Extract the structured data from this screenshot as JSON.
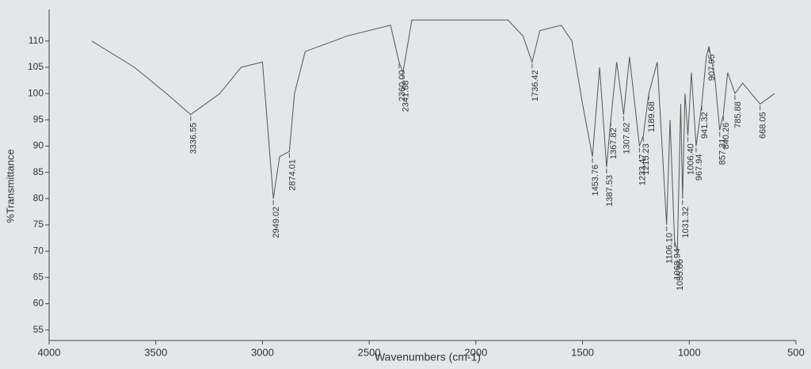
{
  "chart_data": {
    "type": "line",
    "x_label": "Wavenumbers (cm-1)",
    "y_label": "%Transmittance",
    "xlim": [
      4000,
      500
    ],
    "xticks": [
      4000,
      3500,
      3000,
      2500,
      2000,
      1500,
      1000,
      500
    ],
    "ylim": [
      53,
      116
    ],
    "yticks": [
      55,
      60,
      65,
      70,
      75,
      80,
      85,
      90,
      95,
      100,
      105,
      110
    ],
    "series": [
      {
        "color": "#555555",
        "x": [
          3800,
          3600,
          3450,
          3336.55,
          3200,
          3100,
          3000,
          2949.02,
          2920,
          2874.01,
          2850,
          2800,
          2600,
          2400,
          2360,
          2341.68,
          2300,
          2200,
          2000,
          1850,
          1780,
          1736.42,
          1700,
          1600,
          1550,
          1500,
          1453.76,
          1420,
          1387.53,
          1367.82,
          1340,
          1307.62,
          1280,
          1233.47,
          1215.23,
          1189.68,
          1150,
          1106.1,
          1090,
          1068.94,
          1055.86,
          1040,
          1031.32,
          1020,
          1006.4,
          990,
          967.94,
          941.32,
          920,
          907.95,
          880,
          857.31,
          840.26,
          820,
          785.88,
          750,
          668.05,
          600
        ],
        "values": [
          110,
          105,
          100,
          96,
          100,
          105,
          106,
          80,
          88,
          89,
          100,
          108,
          111,
          113,
          106,
          104,
          114,
          114,
          114,
          114,
          111,
          106,
          112,
          113,
          110,
          98,
          88,
          105,
          86,
          95,
          106,
          96,
          107,
          90,
          92,
          100,
          106,
          75,
          95,
          72,
          70,
          98,
          80,
          100,
          92,
          104,
          90,
          98,
          107,
          109,
          103,
          93,
          96,
          104,
          100,
          102,
          98,
          100
        ]
      }
    ],
    "annotations": [
      {
        "x": 3336.55,
        "y": 96,
        "label": "3336.55"
      },
      {
        "x": 2949.02,
        "y": 80,
        "label": "2949.02"
      },
      {
        "x": 2874.01,
        "y": 89,
        "label": "2874.01"
      },
      {
        "x": 2360.0,
        "y": 106,
        "label": "2360.00"
      },
      {
        "x": 2341.68,
        "y": 104,
        "label": "2341.68"
      },
      {
        "x": 1736.42,
        "y": 106,
        "label": "1736.42"
      },
      {
        "x": 1453.76,
        "y": 88,
        "label": "1453.76"
      },
      {
        "x": 1387.53,
        "y": 86,
        "label": "1387.53"
      },
      {
        "x": 1367.82,
        "y": 95,
        "label": "1367.82"
      },
      {
        "x": 1307.62,
        "y": 96,
        "label": "1307.62"
      },
      {
        "x": 1233.47,
        "y": 90,
        "label": "1233.47"
      },
      {
        "x": 1215.23,
        "y": 92,
        "label": "1215.23"
      },
      {
        "x": 1189.68,
        "y": 100,
        "label": "1189.68"
      },
      {
        "x": 1106.1,
        "y": 75,
        "label": "1106.10"
      },
      {
        "x": 1068.94,
        "y": 72,
        "label": "1068.94"
      },
      {
        "x": 1055.86,
        "y": 70,
        "label": "1055.86"
      },
      {
        "x": 1031.32,
        "y": 80,
        "label": "1031.32"
      },
      {
        "x": 1006.4,
        "y": 92,
        "label": "1006.40"
      },
      {
        "x": 967.94,
        "y": 90,
        "label": "967.94"
      },
      {
        "x": 941.32,
        "y": 98,
        "label": "941.32"
      },
      {
        "x": 907.95,
        "y": 109,
        "label": "907.95"
      },
      {
        "x": 857.31,
        "y": 93,
        "label": "857.31"
      },
      {
        "x": 840.26,
        "y": 96,
        "label": "840.26"
      },
      {
        "x": 785.88,
        "y": 100,
        "label": "785.88"
      },
      {
        "x": 668.05,
        "y": 98,
        "label": "668.05"
      }
    ]
  }
}
